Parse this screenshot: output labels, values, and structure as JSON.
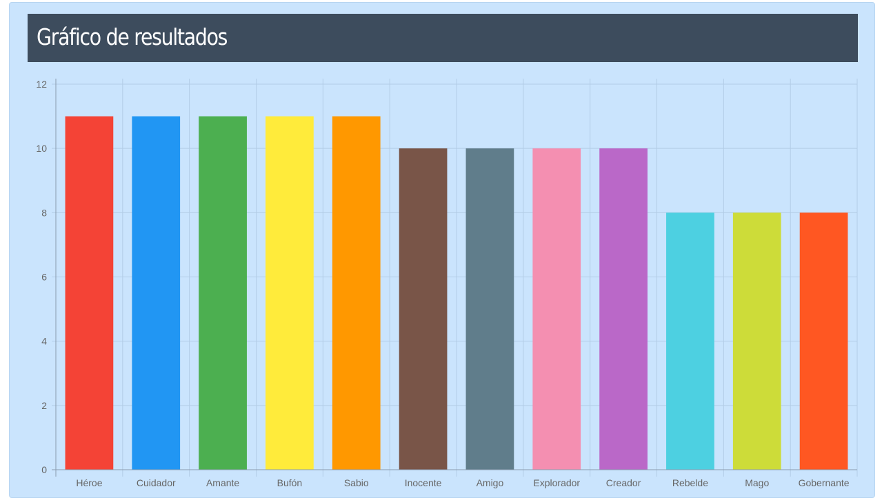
{
  "page": {
    "title": "Gráfico de resultados"
  },
  "colors": {
    "panel_bg": "#cae4fd",
    "header_bg": "#3d4c5d",
    "grid": "#b2cce6",
    "axis": "#8a9cae"
  },
  "chart_data": {
    "type": "bar",
    "title": "",
    "xlabel": "",
    "ylabel": "",
    "ylim": [
      0,
      12
    ],
    "yticks": [
      0,
      2,
      4,
      6,
      8,
      10,
      12
    ],
    "grid": true,
    "legend": "none",
    "categories": [
      "Héroe",
      "Cuidador",
      "Amante",
      "Bufón",
      "Sabio",
      "Inocente",
      "Amigo",
      "Explorador",
      "Creador",
      "Rebelde",
      "Mago",
      "Gobernante"
    ],
    "values": [
      11,
      11,
      11,
      11,
      11,
      10,
      10,
      10,
      10,
      8,
      8,
      8
    ],
    "bar_colors": [
      "#f44336",
      "#2196f3",
      "#4caf50",
      "#ffeb3b",
      "#ff9800",
      "#795548",
      "#607d8b",
      "#f48fb1",
      "#ba68c8",
      "#4dd0e1",
      "#cddc39",
      "#ff5722"
    ]
  }
}
